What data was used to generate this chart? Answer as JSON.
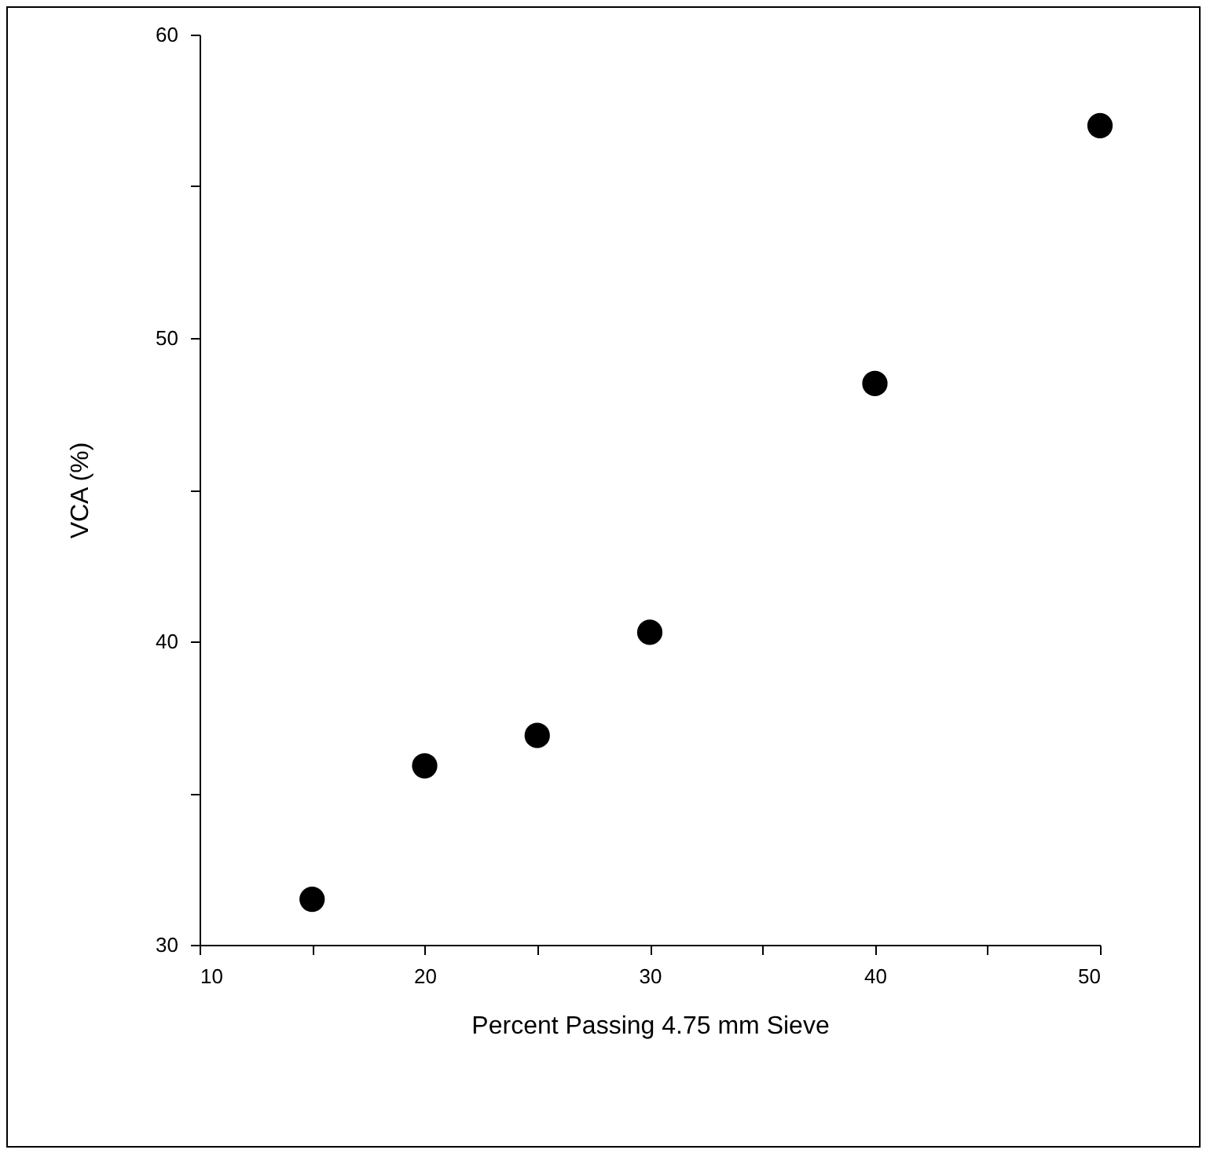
{
  "chart_data": {
    "type": "scatter",
    "xlabel": "Percent Passing 4.75 mm Sieve",
    "ylabel": "VCA (%)",
    "x": [
      15,
      20,
      25,
      30,
      40,
      50
    ],
    "series": [
      {
        "color": "#000000",
        "values": [
          31.5,
          35.9,
          36.9,
          40.3,
          48.5,
          57.0
        ]
      }
    ],
    "xlim": [
      10,
      50
    ],
    "ylim": [
      30,
      60
    ],
    "xticks": [
      10,
      {
        "value": 15,
        "label": null
      },
      20,
      {
        "value": 25,
        "label": null
      },
      30,
      {
        "value": 35,
        "label": null
      },
      40,
      {
        "value": 45,
        "label": null
      },
      50
    ],
    "yticks": [
      30,
      {
        "value": 35,
        "label": null
      },
      40,
      {
        "value": 45,
        "label": null
      },
      50,
      {
        "value": 55,
        "label": null
      },
      60
    ],
    "grid": false,
    "marker": "circle"
  }
}
